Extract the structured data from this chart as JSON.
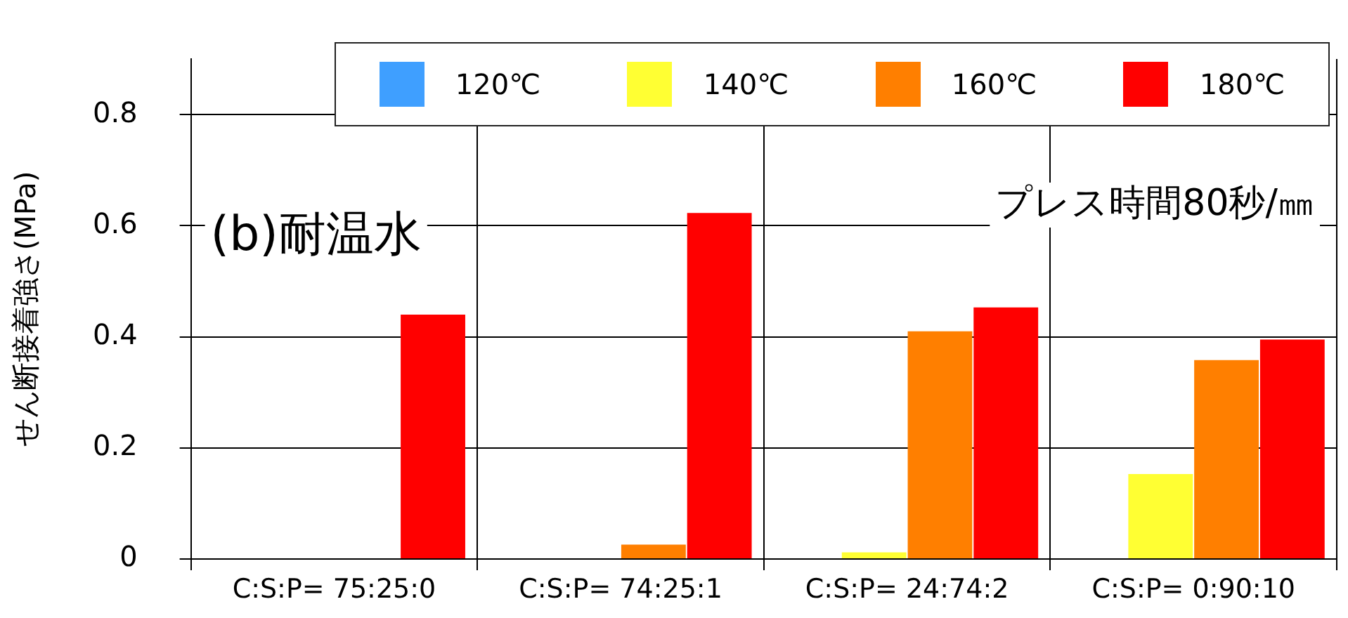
{
  "chart_data": {
    "type": "bar",
    "ylabel": "せん断接着強さ(MPa)",
    "categories": [
      "C:S:P= 75:25:0",
      "C:S:P= 74:25:1",
      "C:S:P= 24:74:2",
      "C:S:P= 0:90:10"
    ],
    "series": [
      {
        "name": "120℃",
        "color": "#3f9fff",
        "values": [
          0,
          0,
          0,
          0
        ]
      },
      {
        "name": "140℃",
        "color": "#ffff33",
        "values": [
          0,
          0,
          0.012,
          0.153
        ]
      },
      {
        "name": "160℃",
        "color": "#ff7f00",
        "values": [
          0,
          0.026,
          0.41,
          0.358
        ]
      },
      {
        "name": "180℃",
        "color": "#ff0000",
        "values": [
          0.44,
          0.623,
          0.453,
          0.395
        ]
      }
    ],
    "ylim": [
      0,
      0.9
    ],
    "yticks": [
      0,
      0.2,
      0.4,
      0.6,
      0.8
    ],
    "grid": true,
    "legend": "top",
    "annotations": [
      "(b)耐温水",
      "プレス時間80秒/㎜"
    ]
  }
}
